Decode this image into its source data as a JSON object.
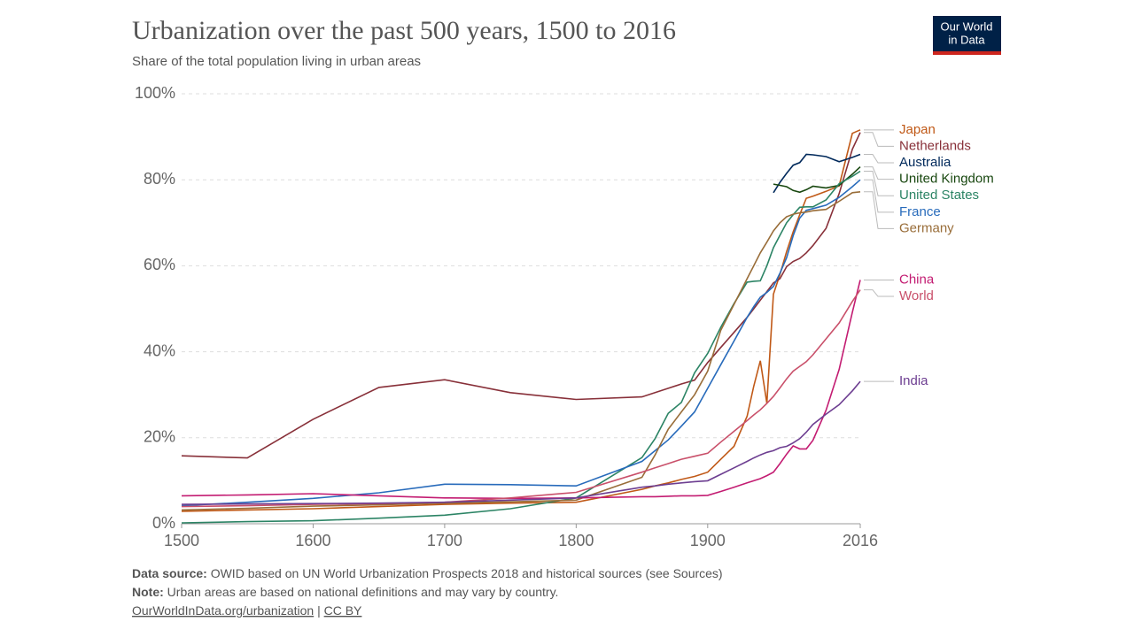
{
  "logo": [
    "Our World",
    "in Data"
  ],
  "chart_data": {
    "type": "line",
    "title": "Urbanization over the past 500 years, 1500 to 2016",
    "subtitle": "Share of the total population living in urban areas",
    "x": [
      1500,
      1550,
      1600,
      1650,
      1700,
      1750,
      1800,
      1850,
      1860,
      1870,
      1880,
      1890,
      1900,
      1910,
      1920,
      1930,
      1935,
      1940,
      1945,
      1950,
      1955,
      1960,
      1965,
      1970,
      1975,
      1980,
      1990,
      2000,
      2010,
      2016
    ],
    "xlim": [
      1500,
      2016
    ],
    "xticks": [
      1500,
      1600,
      1700,
      1800,
      1900,
      2016
    ],
    "ylim": [
      0,
      100
    ],
    "yticks": [
      {
        "value": 0,
        "label": "0%"
      },
      {
        "value": 20,
        "label": "20%"
      },
      {
        "value": 40,
        "label": "40%"
      },
      {
        "value": 60,
        "label": "60%"
      },
      {
        "value": 80,
        "label": "80%"
      },
      {
        "value": 100,
        "label": "100%"
      }
    ],
    "grid": true,
    "series": [
      {
        "name": "Japan",
        "color": "#c05917",
        "values": [
          2.9,
          3.2,
          3.5,
          4,
          4.5,
          4.8,
          5,
          8,
          8.8,
          9.5,
          10.3,
          11,
          12,
          15,
          18,
          25,
          32,
          37.9,
          28,
          53.4,
          58,
          63.3,
          67.9,
          71.9,
          75.7,
          76.2,
          77.3,
          78.6,
          90.8,
          91.6
        ]
      },
      {
        "name": "Netherlands",
        "color": "#883039",
        "values": [
          15.8,
          15.3,
          24.3,
          31.7,
          33.5,
          30.5,
          28.9,
          29.5,
          30.5,
          31.5,
          32.5,
          33.4,
          37.5,
          41,
          44.5,
          48,
          50,
          52,
          54,
          56,
          57,
          59.8,
          61,
          61.7,
          63,
          64.7,
          68.7,
          76.8,
          87.1,
          91
        ]
      },
      {
        "name": "Australia",
        "color": "#00295b",
        "values": [
          null,
          null,
          null,
          null,
          null,
          null,
          null,
          null,
          null,
          null,
          null,
          null,
          null,
          null,
          null,
          null,
          null,
          null,
          null,
          77,
          79.4,
          81.5,
          83.4,
          84,
          85.9,
          85.8,
          85.4,
          84.2,
          85.2,
          85.9
        ]
      },
      {
        "name": "United Kingdom",
        "color": "#18470f",
        "values": [
          null,
          null,
          null,
          null,
          null,
          null,
          null,
          null,
          null,
          null,
          null,
          null,
          null,
          null,
          null,
          null,
          null,
          null,
          null,
          79,
          78.7,
          78.4,
          77.5,
          77.1,
          77.7,
          78.5,
          78.1,
          78.7,
          81.3,
          83
        ]
      },
      {
        "name": "United States",
        "color": "#2c8465",
        "values": [
          0.2,
          0.5,
          0.7,
          1.3,
          2,
          3.5,
          6,
          15.4,
          19.8,
          25.7,
          28.2,
          35.1,
          39.6,
          45.7,
          51.2,
          56.2,
          56.4,
          56.5,
          60,
          64.2,
          67.1,
          70,
          71.9,
          73.6,
          73.7,
          73.7,
          75.3,
          79.1,
          80.8,
          82
        ]
      },
      {
        "name": "France",
        "color": "#286bbb",
        "values": [
          4.2,
          5,
          5.9,
          7.2,
          9.2,
          9.1,
          8.8,
          14.5,
          17,
          19.5,
          22.7,
          26,
          31.5,
          37,
          42.5,
          48,
          50.5,
          52.7,
          53.8,
          55.2,
          58.3,
          61.9,
          67,
          71.1,
          72.9,
          73.3,
          74.1,
          75.9,
          78.4,
          80
        ]
      },
      {
        "name": "Germany",
        "color": "#996d39",
        "values": [
          3.2,
          3.6,
          4.1,
          4.4,
          4.8,
          5.1,
          5.5,
          10.8,
          16,
          22,
          26,
          30,
          35.5,
          45,
          51,
          57,
          60,
          63,
          65.5,
          68.1,
          70,
          71.4,
          72,
          72.3,
          72.5,
          72.8,
          73.1,
          75,
          77,
          77.2
        ]
      },
      {
        "name": "China",
        "color": "#c31c72",
        "values": [
          6.5,
          6.7,
          7,
          6.5,
          6,
          5.9,
          6,
          6.3,
          6.3,
          6.4,
          6.5,
          6.5,
          6.6,
          7.5,
          8.5,
          9.5,
          10,
          10.5,
          11.2,
          12,
          14,
          16.2,
          18.1,
          17.4,
          17.4,
          19.4,
          26.4,
          35.9,
          49.2,
          56.7
        ]
      },
      {
        "name": "World",
        "color": "#c9506a",
        "values": [
          4,
          4.2,
          4.5,
          4.7,
          5,
          6,
          7.3,
          12,
          13,
          14,
          15,
          15.7,
          16.4,
          19,
          21.5,
          24,
          25.3,
          26.5,
          28,
          29.6,
          31.6,
          33.7,
          35.5,
          36.6,
          37.7,
          39.3,
          43,
          46.7,
          51.7,
          54.4
        ]
      },
      {
        "name": "India",
        "color": "#6d3e91",
        "values": [
          4.5,
          4.6,
          4.7,
          4.8,
          5,
          5.5,
          6,
          8.5,
          8.8,
          9.2,
          9.5,
          9.8,
          10,
          11.5,
          13,
          14.5,
          15.3,
          16,
          16.6,
          17,
          17.7,
          18,
          18.8,
          19.8,
          21.3,
          23.1,
          25.5,
          27.7,
          30.9,
          33.1
        ]
      }
    ]
  },
  "footer": {
    "source_label": "Data source:",
    "source_text": "OWID based on UN World Urbanization Prospects 2018 and historical sources (see Sources)",
    "note_label": "Note:",
    "note_text": "Urban areas are based on national definitions and may vary by country.",
    "link": "OurWorldInData.org/urbanization",
    "separator": "|",
    "license": "CC BY"
  }
}
